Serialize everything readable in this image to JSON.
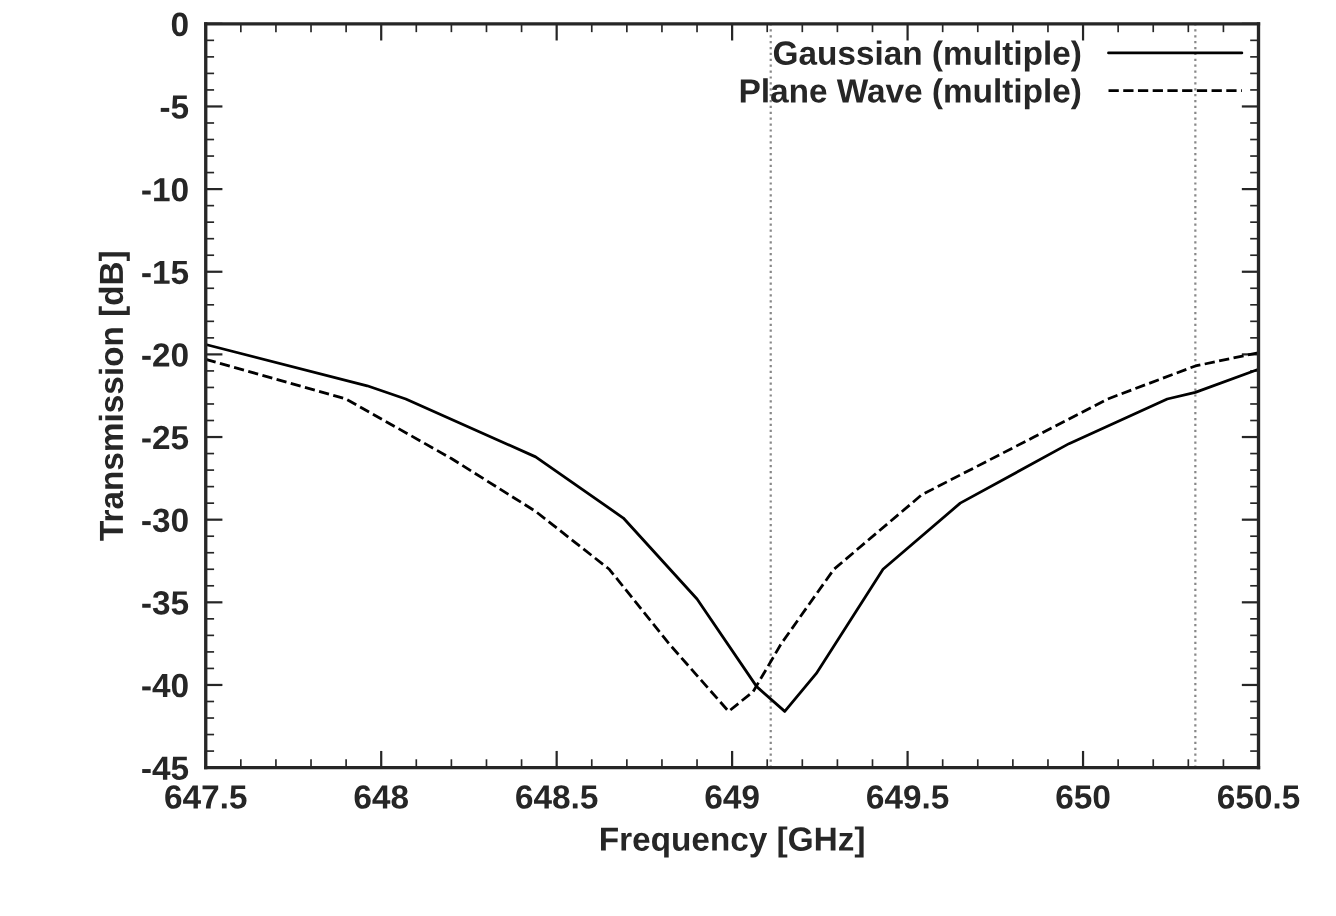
{
  "chart_data": {
    "type": "line",
    "xlabel": "Frequency [GHz]",
    "ylabel": "Transmission [dB]",
    "xlim": [
      647.5,
      650.5
    ],
    "xticks": [
      647.5,
      648,
      648.5,
      649,
      649.5,
      650,
      650.5
    ],
    "ylim": [
      -45,
      0
    ],
    "yticks": [
      -45,
      -40,
      -35,
      -30,
      -25,
      -20,
      -15,
      -10,
      -5,
      0
    ],
    "grid": false,
    "legend": "top right",
    "ref_lines": [
      {
        "axis": "x",
        "value": 649.11,
        "color": "#888888",
        "line_style": "dotted"
      },
      {
        "axis": "x",
        "value": 650.32,
        "color": "#888888",
        "line_style": "dotted"
      }
    ],
    "series": [
      {
        "name": "Gaussian (multiple)",
        "color": "#000000",
        "line_style": "solid",
        "x": [
          647.5,
          647.96,
          648.07,
          648.44,
          648.69,
          648.9,
          649.07,
          649.15,
          649.24,
          649.43,
          649.65,
          649.96,
          650.24,
          650.32,
          650.5
        ],
        "values": [
          -19.4,
          -21.9,
          -22.7,
          -26.2,
          -29.9,
          -34.8,
          -40.1,
          -41.6,
          -39.3,
          -33.0,
          -29.0,
          -25.4,
          -22.7,
          -22.3,
          -20.9
        ]
      },
      {
        "name": "Plane Wave (multiple)",
        "color": "#000000",
        "line_style": "dashed",
        "x": [
          647.5,
          647.9,
          648.2,
          648.44,
          648.65,
          648.82,
          648.99,
          649.06,
          649.14,
          649.29,
          649.54,
          649.86,
          650.07,
          650.32,
          650.5
        ],
        "values": [
          -20.3,
          -22.7,
          -26.3,
          -29.5,
          -33.0,
          -37.5,
          -41.6,
          -40.4,
          -37.5,
          -33.0,
          -28.5,
          -25.0,
          -22.7,
          -20.7,
          -19.9
        ]
      }
    ]
  }
}
